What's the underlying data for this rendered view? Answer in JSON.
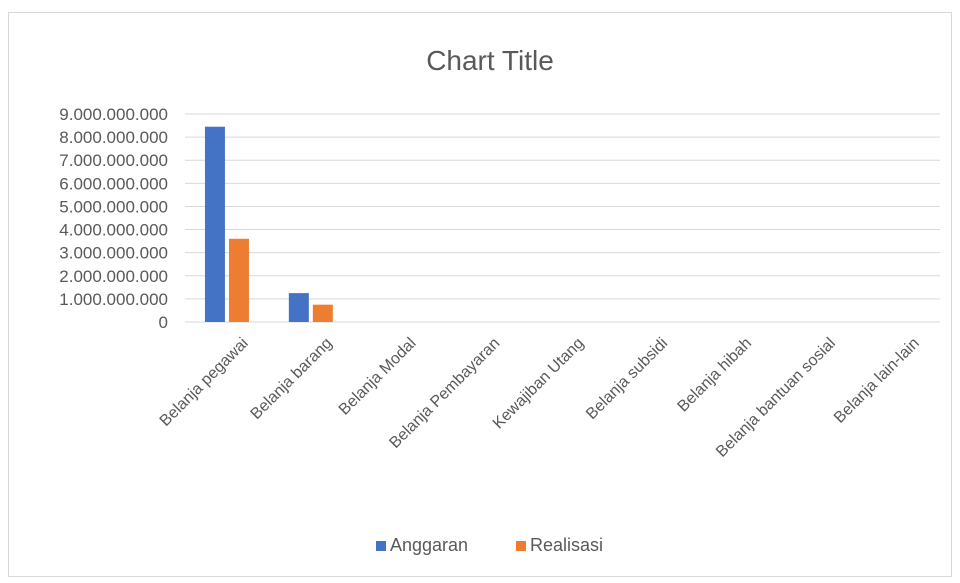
{
  "chart_data": {
    "type": "bar",
    "title": "Chart Title",
    "xlabel": "",
    "ylabel": "",
    "categories": [
      "Belanja pegawai",
      "Belanja barang",
      "Belanja Modal",
      "Belanja Pembayaran",
      "Kewajiban Utang",
      "Belanja subsidi",
      "Belanja hibah",
      "Belanja bantuan sosial",
      "Belanja lain-lain"
    ],
    "series": [
      {
        "name": "Anggaran",
        "color": "#4472c4",
        "values": [
          8450000000,
          1250000000,
          0,
          0,
          0,
          0,
          0,
          0,
          0
        ]
      },
      {
        "name": "Realisasi",
        "color": "#ed7d31",
        "values": [
          3600000000,
          750000000,
          0,
          0,
          0,
          0,
          0,
          0,
          0
        ]
      }
    ],
    "ylim": [
      0,
      9000000000
    ],
    "yticks": [
      {
        "value": 0,
        "label": "0"
      },
      {
        "value": 1000000000,
        "label": "1.000.000.000"
      },
      {
        "value": 2000000000,
        "label": "2.000.000.000"
      },
      {
        "value": 3000000000,
        "label": "3.000.000.000"
      },
      {
        "value": 4000000000,
        "label": "4.000.000.000"
      },
      {
        "value": 5000000000,
        "label": "5.000.000.000"
      },
      {
        "value": 6000000000,
        "label": "6.000.000.000"
      },
      {
        "value": 7000000000,
        "label": "7.000.000.000"
      },
      {
        "value": 8000000000,
        "label": "8.000.000.000"
      },
      {
        "value": 9000000000,
        "label": "9.000.000.000"
      }
    ],
    "grid": true,
    "legend": "bottom"
  }
}
